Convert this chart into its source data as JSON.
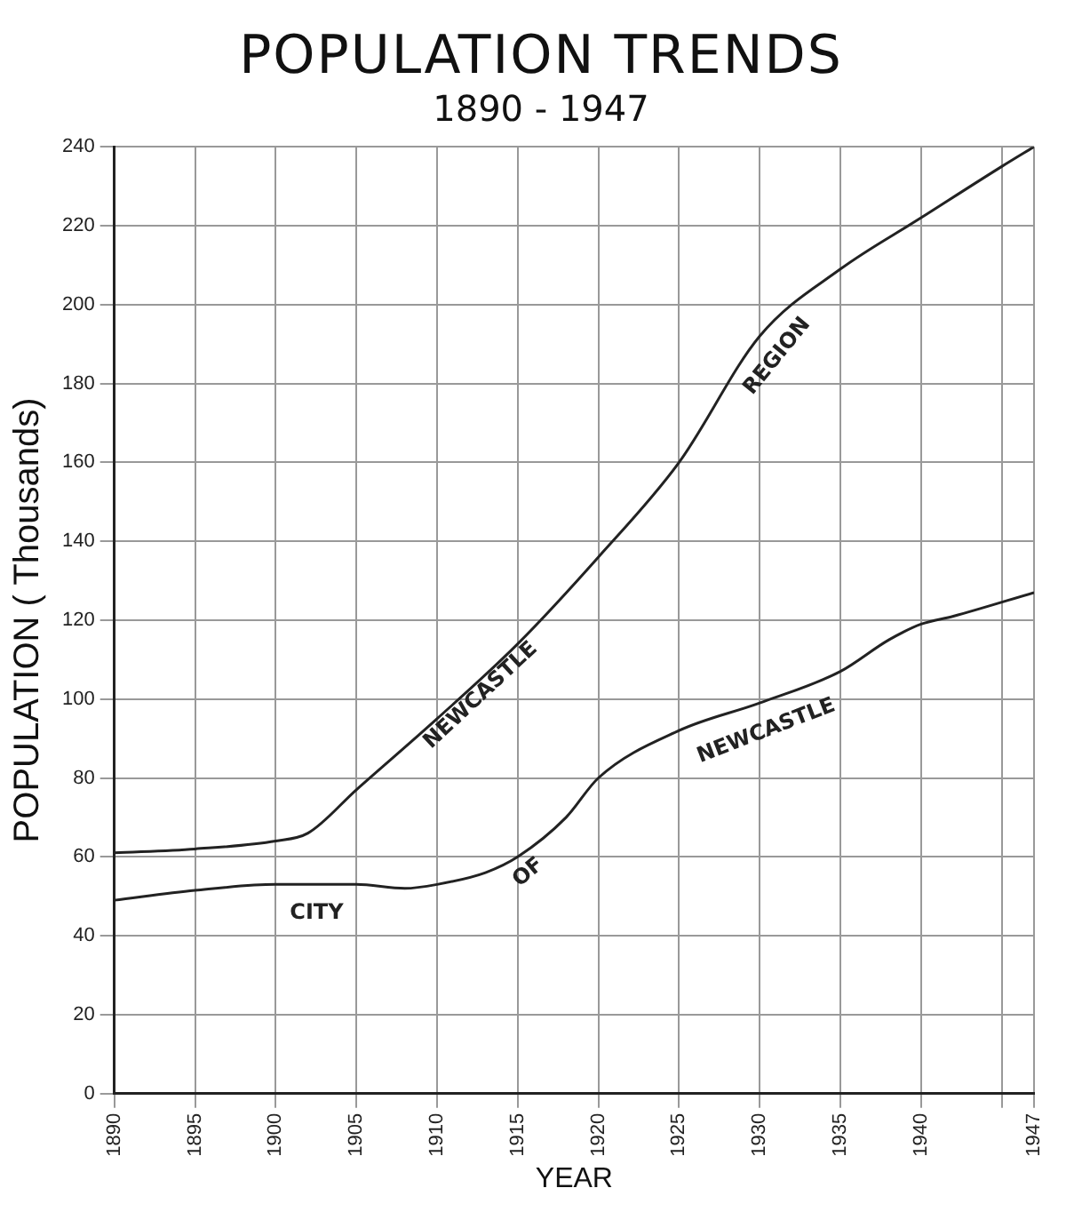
{
  "chart_data": {
    "type": "line",
    "title": "POPULATION TRENDS",
    "subtitle": "1890 - 1947",
    "xlabel": "YEAR",
    "ylabel": "POPULATION ( Thousands)",
    "xlim": [
      1890,
      1947
    ],
    "xticks": [
      1890,
      1895,
      1900,
      1905,
      1910,
      1915,
      1920,
      1925,
      1930,
      1935,
      1940,
      {
        "value": 1945,
        "label": null
      },
      1947
    ],
    "ylim": [
      0,
      240
    ],
    "yticks": [
      0,
      20,
      40,
      60,
      80,
      100,
      120,
      140,
      160,
      180,
      200,
      220,
      240
    ],
    "grid": true,
    "legend": false,
    "marker": "none",
    "line_style": "solid",
    "series": [
      {
        "name": "NEWCASTLE REGION",
        "color": "#222222",
        "x": [
          1890,
          1895,
          1900,
          1902,
          1905,
          1910,
          1915,
          1920,
          1925,
          1930,
          1935,
          1940,
          1945,
          1947
        ],
        "values": [
          61,
          62,
          64,
          66,
          77,
          95,
          114,
          136,
          160,
          192,
          209,
          222,
          235,
          240
        ]
      },
      {
        "name": "CITY OF NEWCASTLE",
        "color": "#222222",
        "x": [
          1890,
          1895,
          1900,
          1905,
          1908,
          1910,
          1913,
          1915,
          1918,
          1920,
          1925,
          1930,
          1935,
          1938,
          1940,
          1942,
          1947
        ],
        "values": [
          49,
          51.5,
          53,
          53,
          52,
          53,
          56,
          60,
          70,
          80,
          92,
          99,
          107,
          115,
          119,
          121,
          127
        ]
      }
    ]
  }
}
